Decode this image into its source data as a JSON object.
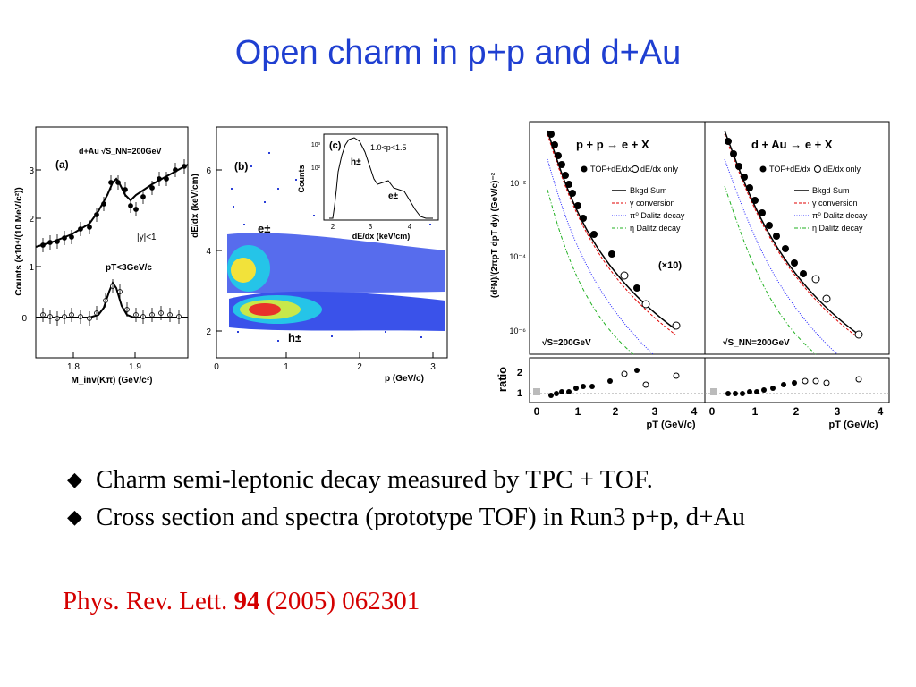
{
  "slide": {
    "title": "Open charm in p+p and d+Au",
    "bullets": [
      "Charm semi-leptonic decay measured by TPC + TOF.",
      "Cross section and spectra (prototype TOF) in Run3 p+p, d+Au"
    ],
    "bullet_icon": "diamond-bullet-icon",
    "reference": {
      "journal": "Phys. Rev. Lett.",
      "volume": "94",
      "rest": "(2005) 062301"
    }
  },
  "colors": {
    "title": "#1f3fd1",
    "reference": "#d40000",
    "fit": "#000000",
    "gamma": "#e00000",
    "pi0": "#2020ff",
    "eta": "#20b020"
  },
  "panel_a": {
    "label": "(a)",
    "energy": "d+Au √S_NN=200GeV",
    "rapidity": "|y|<1",
    "pt_cut": "pT<3GeV/c",
    "ylabel": "Counts (×10⁴/(10 MeV/c²))",
    "xlabel": "M_inv(Kπ) (GeV/c²)",
    "x_ticks": [
      "1.8",
      "1.9"
    ],
    "y_ticks": [
      "0",
      "1",
      "2",
      "3"
    ]
  },
  "panel_b": {
    "label": "(b)",
    "ylabel": "dE/dx (keV/cm)",
    "xlabel": "p (GeV/c)",
    "x_ticks": [
      "0",
      "1",
      "2",
      "3"
    ],
    "y_ticks": [
      "2",
      "4",
      "6"
    ],
    "band_e": "e±",
    "band_h": "h±"
  },
  "panel_c": {
    "label": "(c)",
    "momentum": "1.0<p<1.5",
    "ylabel": "Counts",
    "xlabel": "dE/dx (keV/cm)",
    "x_ticks": [
      "2",
      "3",
      "4"
    ],
    "y_ticks": [
      "10²",
      "10³"
    ],
    "peak_h": "h±",
    "peak_e": "e±"
  },
  "panel_spectra": {
    "ylabel": "(d²N)/(2πpT dpT dy) (GeV/c)⁻²",
    "ratio_label": "ratio",
    "y_ticks": [
      "10⁻²",
      "10⁻⁴",
      "10⁻⁶"
    ],
    "ratio_ticks": [
      "2",
      "1"
    ],
    "x_ticks": [
      "0",
      "1",
      "2",
      "3",
      "4"
    ],
    "xlabel": "pT (GeV/c)",
    "scale_note": "(×10)",
    "legend": [
      "TOF+dE/dx",
      "dE/dx only",
      "Bkgd Sum",
      "γ conversion",
      "π⁰ Dalitz decay",
      "η Dalitz decay"
    ],
    "left": {
      "title": "p + p → e + X",
      "energy": "√S=200GeV"
    },
    "right": {
      "title": "d + Au → e + X",
      "energy": "√S_NN=200GeV"
    }
  }
}
